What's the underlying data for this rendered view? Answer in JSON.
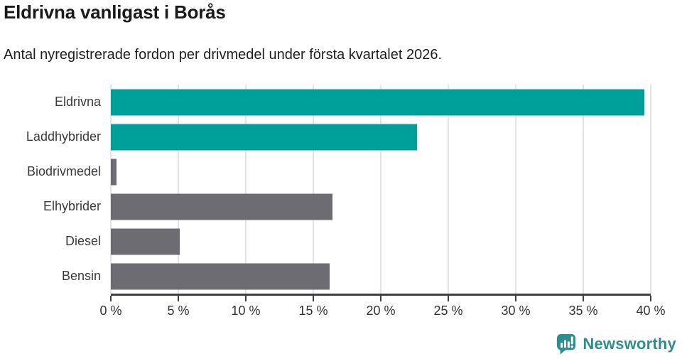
{
  "header": {
    "title": "Eldrivna vanligast i Borås",
    "subtitle": "Antal nyregistrerade fordon per drivmedel under första kvartalet 2026."
  },
  "chart_data": {
    "type": "bar",
    "orientation": "horizontal",
    "title": "Eldrivna vanligast i Borås",
    "subtitle": "Antal nyregistrerade fordon per drivmedel under första kvartalet 2026.",
    "categories": [
      "Eldrivna",
      "Laddhybrider",
      "Biodrivmedel",
      "Elhybrider",
      "Diesel",
      "Bensin"
    ],
    "values": [
      39.5,
      22.7,
      0.4,
      16.4,
      5.1,
      16.2
    ],
    "bar_colors": [
      "#00a09a",
      "#00a09a",
      "#6c6c72",
      "#6c6c72",
      "#6c6c72",
      "#6c6c72"
    ],
    "unit": "%",
    "xlabel": "",
    "ylabel": "",
    "xlim": [
      0,
      40
    ],
    "x_ticks": [
      0,
      5,
      10,
      15,
      20,
      25,
      30,
      35,
      40
    ],
    "x_tick_labels": [
      "0 %",
      "5 %",
      "10 %",
      "15 %",
      "20 %",
      "25 %",
      "30 %",
      "35 %",
      "40 %"
    ],
    "grid": true,
    "legend": false
  },
  "branding": {
    "logo_text": "Newsworthy",
    "logo_icon": "bar-chart-speech-bubble-icon",
    "brand_color": "#2e8d8f"
  },
  "colors": {
    "highlight_teal": "#00a09a",
    "neutral_gray": "#6c6c72",
    "gridline": "#e4e4e7",
    "axis": "#3f3f3f",
    "label_text": "#3a3a3a",
    "title_text": "#1a1a1a",
    "background": "#ffffff"
  }
}
